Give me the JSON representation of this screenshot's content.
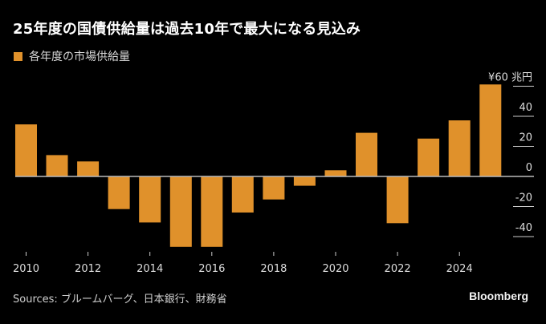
{
  "title": "25年度の国債供給量は過去10年で最大になる見込み",
  "legend": {
    "label": "各年度の市場供給量",
    "color": "#E0912B"
  },
  "footer": {
    "source": "Sources: ブルームバーグ、日本銀行、財務省",
    "brand": "Bloomberg"
  },
  "chart_data": {
    "type": "bar",
    "title": "25年度の国債供給量は過去10年で最大になる見込み",
    "xlabel": "",
    "ylabel": "兆円",
    "unit_label": "¥60 兆円",
    "bar_color": "#E0912B",
    "zero_line_color": "#bbbbbb",
    "categories": [
      "2010",
      "2011",
      "2012",
      "2013",
      "2014",
      "2015",
      "2016",
      "2017",
      "2018",
      "2019",
      "2020",
      "2021",
      "2022",
      "2023",
      "2024",
      "2025"
    ],
    "series": [
      {
        "name": "各年度の市場供給量",
        "values": [
          34.6,
          14.2,
          10.0,
          -21.7,
          -30.6,
          -46.8,
          -46.8,
          -24.0,
          -15.3,
          -6.2,
          4.1,
          29.0,
          -31.1,
          25.2,
          37.3,
          61.2
        ]
      }
    ],
    "x_tick_labels": [
      "2010",
      "2012",
      "2014",
      "2016",
      "2018",
      "2020",
      "2022",
      "2024"
    ],
    "y_ticks": [
      {
        "value": 60,
        "label": "¥60 兆円"
      },
      {
        "value": 40,
        "label": "40"
      },
      {
        "value": 20,
        "label": "20"
      },
      {
        "value": 0,
        "label": "0"
      },
      {
        "value": -20,
        "label": "-20"
      },
      {
        "value": -40,
        "label": "-40"
      }
    ],
    "ylim": [
      -50,
      62
    ],
    "grid": false,
    "legend_position": "top-left"
  }
}
